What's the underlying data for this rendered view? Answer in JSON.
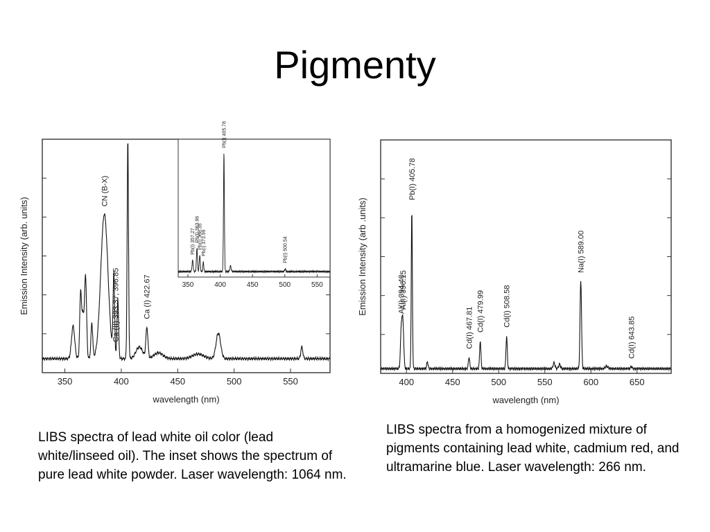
{
  "title": "Pigmenty",
  "captions": {
    "left": "LIBS spectra of lead white oil color (lead white/linseed oil). The inset shows the spectrum of pure lead white powder. Laser wavelength: 1064 nm.",
    "right": "LIBS spectra from a homogenized mixture of pigments containing lead white, cadmium red, and ultramarine blue. Laser wavelength: 266 nm."
  },
  "chart_data": [
    {
      "type": "line",
      "xlabel": "wavelength (nm)",
      "ylabel": "Emission Intensity (arb. units)",
      "xlim": [
        330,
        585
      ],
      "ylim": [
        0,
        1
      ],
      "xticks": [
        350,
        400,
        450,
        500,
        550
      ],
      "baseline": 0.06,
      "peaks": [
        {
          "x": 357.3,
          "y": 0.14,
          "w": 1.4
        },
        {
          "x": 364.0,
          "y": 0.29,
          "w": 0.8
        },
        {
          "x": 366.0,
          "y": 0.18,
          "w": 0.8
        },
        {
          "x": 368.3,
          "y": 0.36,
          "w": 0.9
        },
        {
          "x": 373.9,
          "y": 0.15,
          "w": 0.8
        },
        {
          "x": 385.0,
          "y": 0.62,
          "w": 3.2
        },
        {
          "x": 393.4,
          "y": 0.35,
          "w": 0.7
        },
        {
          "x": 396.9,
          "y": 0.26,
          "w": 0.7
        },
        {
          "x": 405.8,
          "y": 0.94,
          "w": 0.6
        },
        {
          "x": 416.0,
          "y": 0.05,
          "w": 3.0
        },
        {
          "x": 422.7,
          "y": 0.13,
          "w": 0.9
        },
        {
          "x": 433.0,
          "y": 0.025,
          "w": 4.0
        },
        {
          "x": 468.0,
          "y": 0.02,
          "w": 5.0
        },
        {
          "x": 486.0,
          "y": 0.11,
          "w": 2.0
        },
        {
          "x": 560.0,
          "y": 0.05,
          "w": 0.9
        }
      ],
      "annotations": [
        {
          "text": "CN (B-X)",
          "x": 385.0
        },
        {
          "text": "Ca (II) 393.37, 396.85",
          "x": 395.0
        },
        {
          "text": "Ca (I) 422.67",
          "x": 422.7
        }
      ],
      "inset": {
        "xlim": [
          335,
          570
        ],
        "ylim": [
          0,
          1
        ],
        "xticks": [
          350,
          400,
          450,
          500,
          550
        ],
        "baseline": 0.04,
        "peaks": [
          {
            "x": 357.3,
            "y": 0.08,
            "w": 0.9
          },
          {
            "x": 364.0,
            "y": 0.17,
            "w": 0.8
          },
          {
            "x": 368.4,
            "y": 0.12,
            "w": 0.8
          },
          {
            "x": 373.9,
            "y": 0.07,
            "w": 0.7
          },
          {
            "x": 405.8,
            "y": 0.85,
            "w": 0.7
          },
          {
            "x": 416.0,
            "y": 0.04,
            "w": 1.0
          },
          {
            "x": 500.5,
            "y": 0.02,
            "w": 0.8
          }
        ],
        "annotations": [
          {
            "text": "Pb(I) 357.27",
            "x": 357.3
          },
          {
            "text": "Pb(I) 363.96",
            "x": 364.0
          },
          {
            "text": "Pb(I) 368.35",
            "x": 368.4
          },
          {
            "text": "Pb(I) 373.99",
            "x": 374.0
          },
          {
            "text": "Pb(I) 405.78",
            "x": 405.8
          },
          {
            "text": "Pb(I) 500.54",
            "x": 500.5
          }
        ]
      }
    },
    {
      "type": "line",
      "xlabel": "wavelength (nm)",
      "ylabel": "Emission Intensity (arb .units)",
      "xlim": [
        372,
        687
      ],
      "ylim": [
        0,
        1
      ],
      "xticks": [
        400,
        450,
        500,
        550,
        600,
        650
      ],
      "baseline": 0.02,
      "peaks": [
        {
          "x": 394.4,
          "y": 0.17,
          "w": 0.9
        },
        {
          "x": 396.15,
          "y": 0.19,
          "w": 0.9
        },
        {
          "x": 405.78,
          "y": 0.68,
          "w": 0.6
        },
        {
          "x": 422.7,
          "y": 0.03,
          "w": 0.7
        },
        {
          "x": 467.81,
          "y": 0.05,
          "w": 0.7
        },
        {
          "x": 479.99,
          "y": 0.12,
          "w": 0.7
        },
        {
          "x": 508.58,
          "y": 0.14,
          "w": 0.7
        },
        {
          "x": 560.0,
          "y": 0.025,
          "w": 1.0
        },
        {
          "x": 566.0,
          "y": 0.02,
          "w": 1.0
        },
        {
          "x": 589.0,
          "y": 0.38,
          "w": 0.8
        },
        {
          "x": 617.0,
          "y": 0.01,
          "w": 1.5
        },
        {
          "x": 643.85,
          "y": 0.01,
          "w": 0.8
        }
      ],
      "annotations": [
        {
          "text": "Al(I) 394.40",
          "x": 394.4
        },
        {
          "text": "Al(I) 396.15",
          "x": 396.15
        },
        {
          "text": "Pb(I) 405.78",
          "x": 405.78
        },
        {
          "text": "Cd(I) 467.81",
          "x": 467.81
        },
        {
          "text": "Cd(I) 479.99",
          "x": 479.99
        },
        {
          "text": "Cd(I) 508.58",
          "x": 508.58
        },
        {
          "text": "Na(I) 589.00",
          "x": 589.0
        },
        {
          "text": "Cd(I) 643.85",
          "x": 643.85
        }
      ]
    }
  ]
}
